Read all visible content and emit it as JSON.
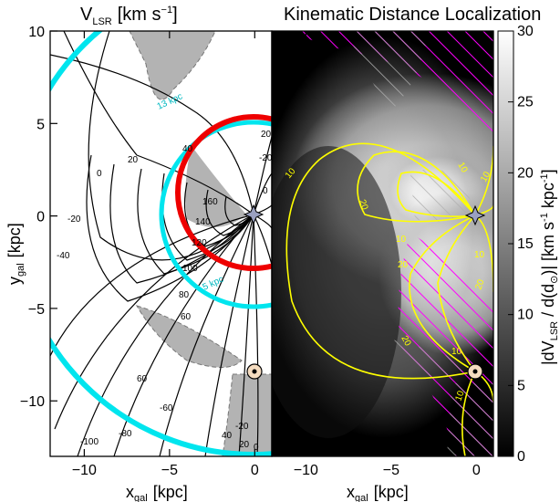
{
  "left_title": "V",
  "left_title_sub": "LSR",
  "left_title_units": "[km s",
  "left_title_exp": "−1",
  "left_title_close": "]",
  "right_title": "Kinematic Distance Localization",
  "chart_data": [
    {
      "type": "contour",
      "panel": "left",
      "quantity": "V_LSR",
      "title": "V_LSR [km s^-1]",
      "xlabel": "x_gal [kpc]",
      "ylabel": "y_gal [kpc]",
      "xlim": [
        -12,
        1
      ],
      "ylim": [
        -13,
        10
      ],
      "x_ticks": [
        "-10",
        "-5",
        "0"
      ],
      "y_ticks": [
        "10",
        "5",
        "0",
        "-5",
        "-10"
      ],
      "contour_labels": [
        "140",
        "160",
        "120",
        "100",
        "80",
        "60",
        "40",
        "20",
        "0",
        "-20",
        "-40",
        "-60",
        "-80",
        "-100",
        "20",
        "0",
        "-20",
        "40",
        "60",
        "20",
        "0",
        "-20",
        "13 kpc",
        "5 kpc"
      ],
      "cyan_circles_kpc": [
        5,
        13
      ],
      "red_circle_radius_kpc": 4,
      "shaded_regions": "grey wedges (forbidden velocities)",
      "markers": [
        {
          "name": "galactic-center",
          "x": 0,
          "y": 0
        },
        {
          "name": "sun",
          "x": 0,
          "y": -8.3
        }
      ]
    },
    {
      "type": "heatmap",
      "panel": "right",
      "quantity": "|dV_LSR / d(d_sun)|",
      "title": "Kinematic Distance Localization",
      "xlabel": "x_gal [kpc]",
      "xlim": [
        -12,
        1
      ],
      "ylim": [
        -13,
        10
      ],
      "x_ticks": [
        "-10",
        "-5",
        "0"
      ],
      "colorbar": {
        "label": "|dV_LSR / d(d_⊙)| [km s^-1 kpc^-1]",
        "range": [
          0,
          30
        ],
        "ticks": [
          "0",
          "5",
          "10",
          "15",
          "20",
          "25",
          "30"
        ],
        "colormap": "grayscale"
      },
      "contour_labels": [
        "10",
        "20",
        "10",
        "10",
        "10",
        "20",
        "20",
        "10",
        "20",
        "10",
        "10"
      ],
      "contour_color": "#ffff00",
      "hatch_colors": [
        "#ff00ff",
        "#bbbbbb"
      ]
    }
  ],
  "colors": {
    "cyan": "#00e5ee",
    "red": "#ee0000",
    "yellow": "#ffff00",
    "magenta": "#ff00ff",
    "grey_region": "#b3b3b3"
  },
  "icons": [
    "galactic-center-star-icon",
    "sun-marker-icon"
  ]
}
